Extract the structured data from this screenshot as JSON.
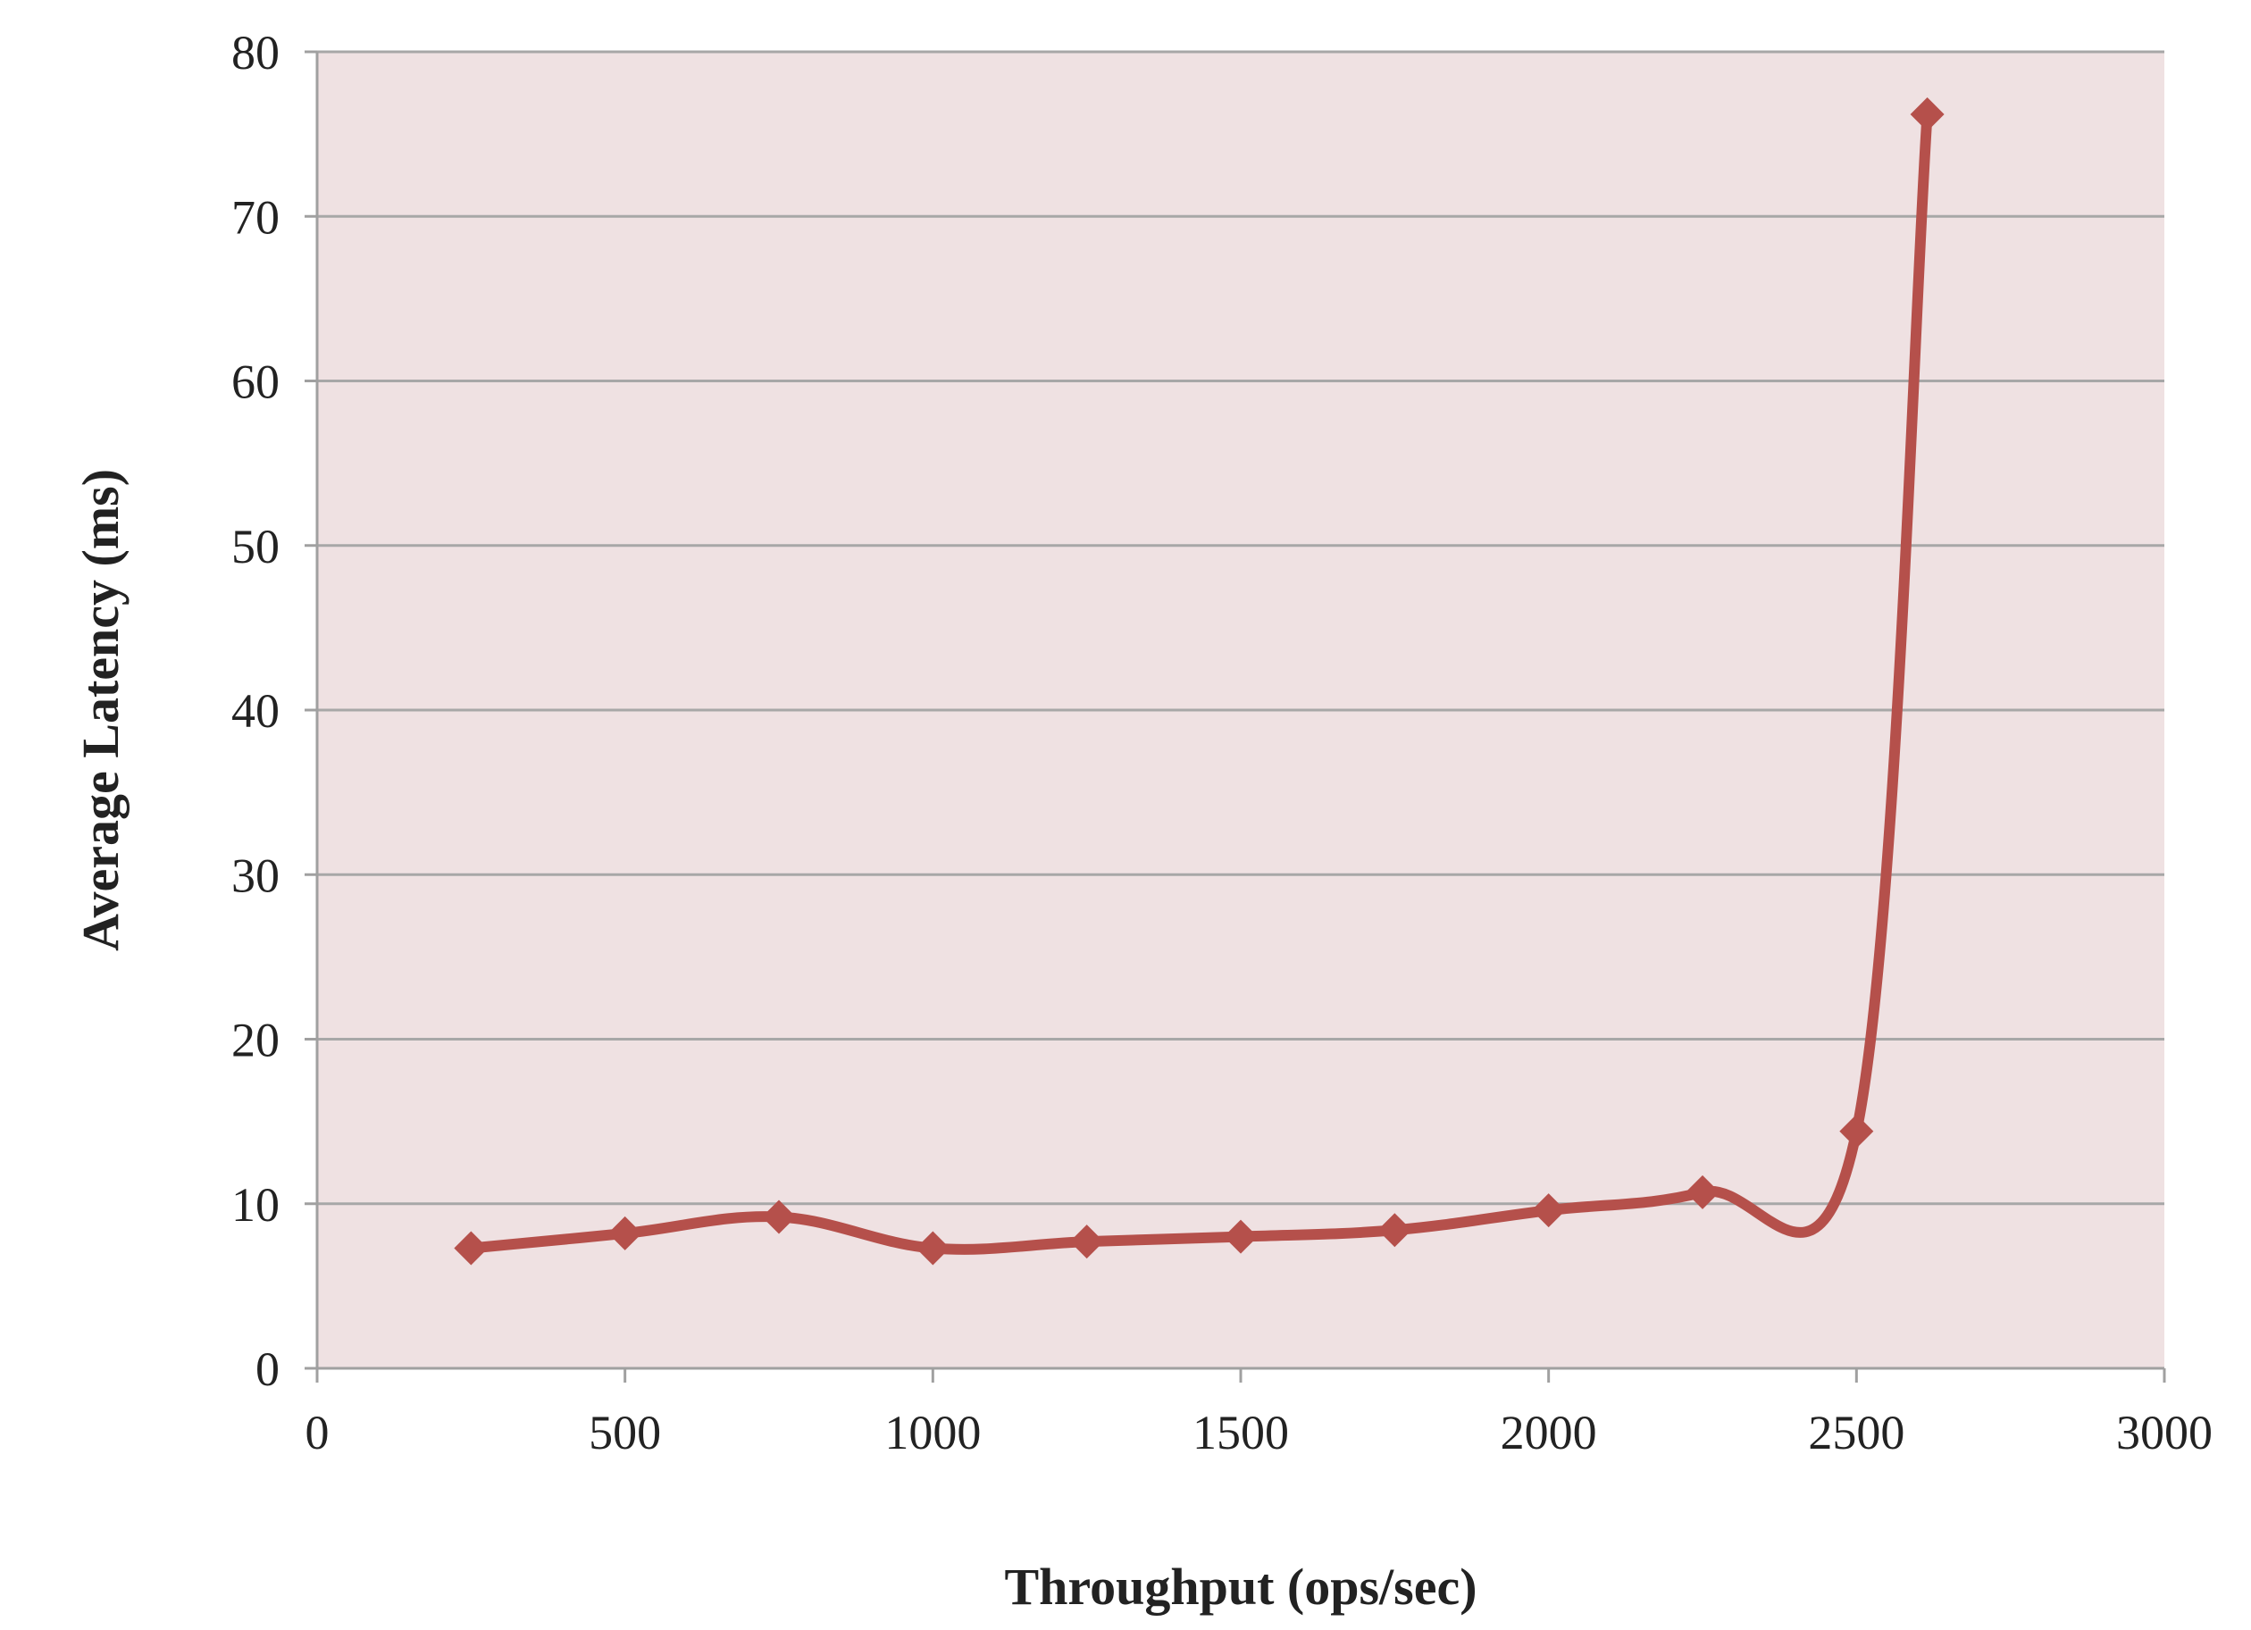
{
  "chart_data": {
    "type": "line",
    "title": "",
    "xlabel": "Throughput (ops/sec)",
    "ylabel": "Average Latency (ms)",
    "xlim": [
      0,
      3000
    ],
    "ylim": [
      0,
      80
    ],
    "xticks": [
      "0",
      "500",
      "1000",
      "1500",
      "2000",
      "2500",
      "3000"
    ],
    "yticks": [
      "0",
      "10",
      "20",
      "30",
      "40",
      "50",
      "60",
      "70",
      "80"
    ],
    "grid": "horizontal",
    "legend": "none",
    "colors": {
      "plot_background": "#efe1e2",
      "series": "#b5504b"
    },
    "series": [
      {
        "marker": "diamond",
        "x": [
          250,
          500,
          750,
          1000,
          1250,
          1500,
          1750,
          2000,
          2250,
          2500,
          2615
        ],
        "y": [
          7.3,
          8.2,
          9.2,
          7.3,
          7.7,
          8.0,
          8.4,
          9.6,
          10.7,
          14.4,
          76.2
        ]
      }
    ]
  }
}
